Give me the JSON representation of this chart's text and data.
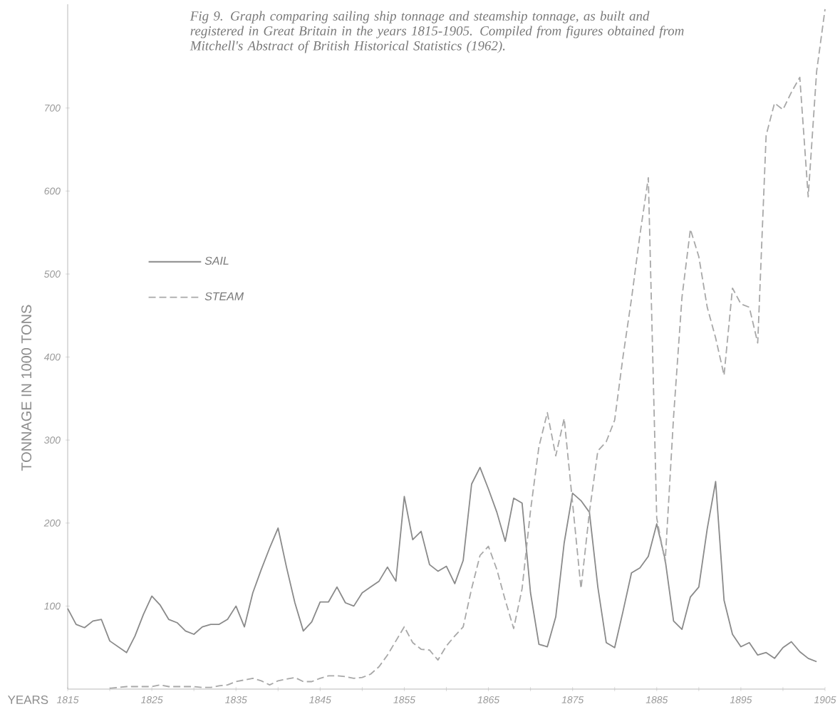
{
  "chart_data": {
    "type": "line",
    "title": "Fig 9.  Graph comparing sailing ship tonnage and steamship tonnage, as built and registered in Great Britain in the years 1815-1905. Compiled from figures obtained from Mitchell's Abstract of British Historical Statistics (1962).",
    "xlabel": "YEARS",
    "ylabel": "TONNAGE IN 1000 TONS",
    "x": [
      1815,
      1816,
      1817,
      1818,
      1819,
      1820,
      1821,
      1822,
      1823,
      1824,
      1825,
      1826,
      1827,
      1828,
      1829,
      1830,
      1831,
      1832,
      1833,
      1834,
      1835,
      1836,
      1837,
      1838,
      1839,
      1840,
      1841,
      1842,
      1843,
      1844,
      1845,
      1846,
      1847,
      1848,
      1849,
      1850,
      1851,
      1852,
      1853,
      1854,
      1855,
      1856,
      1857,
      1858,
      1859,
      1860,
      1861,
      1862,
      1863,
      1864,
      1865,
      1866,
      1867,
      1868,
      1869,
      1870,
      1871,
      1872,
      1873,
      1874,
      1875,
      1876,
      1877,
      1878,
      1879,
      1880,
      1881,
      1882,
      1883,
      1884,
      1885,
      1886,
      1887,
      1888,
      1889,
      1890,
      1891,
      1892,
      1893,
      1894,
      1895,
      1896,
      1897,
      1898,
      1899,
      1900,
      1901,
      1902,
      1903,
      1904,
      1905
    ],
    "series": [
      {
        "name": "SAIL",
        "color": "#8a8a8a",
        "line_style": "solid",
        "values": [
          97,
          78,
          74,
          82,
          84,
          58,
          51,
          44,
          64,
          90,
          112,
          101,
          84,
          80,
          70,
          66,
          75,
          78,
          78,
          84,
          100,
          75,
          116,
          144,
          170,
          194,
          147,
          104,
          70,
          81,
          105,
          105,
          123,
          104,
          100,
          116,
          123,
          130,
          147,
          130,
          232,
          180,
          190,
          150,
          142,
          148,
          127,
          155,
          247,
          267,
          241,
          213,
          178,
          230,
          224,
          116,
          54,
          51,
          87,
          176,
          236,
          227,
          213,
          123,
          56,
          50,
          94,
          140,
          146,
          160,
          199,
          156,
          82,
          72,
          111,
          123,
          193,
          250,
          107,
          66,
          51,
          56,
          41,
          44,
          37,
          50,
          57,
          45,
          37,
          33,
          null
        ]
      },
      {
        "name": "STEAM",
        "color": "#a8a8a8",
        "line_style": "dashed",
        "values": [
          null,
          null,
          null,
          null,
          null,
          1,
          2,
          3,
          3,
          3,
          3,
          5,
          3,
          3,
          3,
          3,
          2,
          2,
          4,
          5,
          9,
          11,
          13,
          10,
          5,
          10,
          12,
          14,
          9,
          9,
          13,
          16,
          16,
          15,
          13,
          14,
          18,
          27,
          41,
          58,
          75,
          56,
          48,
          47,
          35,
          52,
          64,
          75,
          121,
          161,
          172,
          144,
          107,
          73,
          121,
          215,
          292,
          333,
          281,
          326,
          224,
          121,
          213,
          287,
          298,
          324,
          401,
          470,
          547,
          616,
          206,
          153,
          328,
          472,
          554,
          521,
          460,
          423,
          378,
          483,
          464,
          460,
          417,
          667,
          706,
          698,
          719,
          737,
          593,
          744,
          819
        ]
      }
    ],
    "xlim": [
      1815,
      1905
    ],
    "xticks": [
      1815,
      {
        "value": 1820,
        "label": null
      },
      1825,
      {
        "value": 1830,
        "label": null
      },
      1835,
      {
        "value": 1840,
        "label": null
      },
      1845,
      {
        "value": 1850,
        "label": null
      },
      1855,
      {
        "value": 1860,
        "label": null
      },
      1865,
      {
        "value": 1870,
        "label": null
      },
      1875,
      {
        "value": 1880,
        "label": null
      },
      1885,
      {
        "value": 1890,
        "label": null
      },
      1895,
      {
        "value": 1900,
        "label": null
      },
      1905
    ],
    "ylim": [
      0,
      825
    ],
    "yticks": [
      100,
      200,
      300,
      400,
      500,
      600,
      700
    ],
    "legend": "left",
    "grid": false
  }
}
